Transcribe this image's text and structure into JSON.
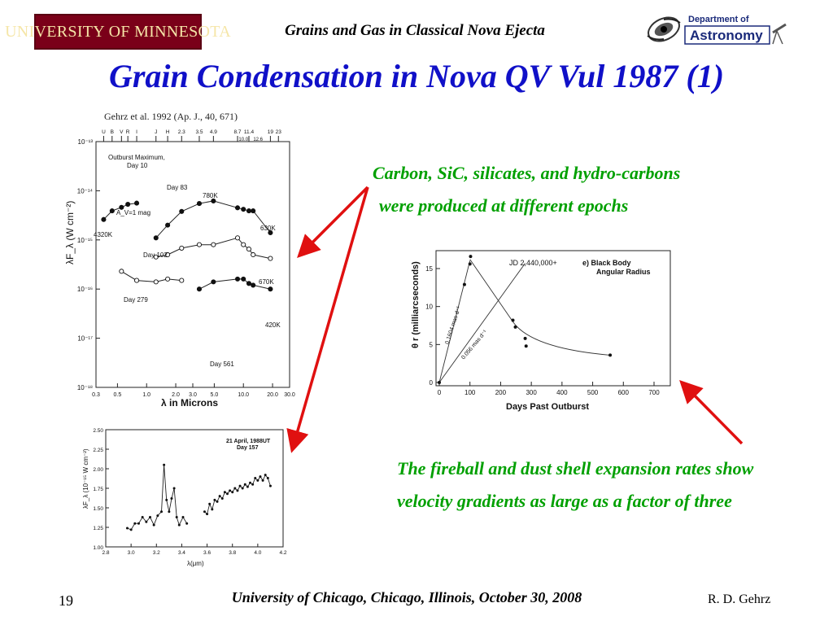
{
  "header": {
    "logo_text": "UNIVERSITY OF MINNESOTA",
    "title": "Grains and Gas in Classical Nova Ejecta",
    "dept_line1": "Department of",
    "dept_line2": "Astronomy"
  },
  "slide": {
    "title": "Grain Condensation in Nova QV Vul 1987 (1)",
    "caption_1_line1": "Carbon, SiC, silicates, and hydro-carbons",
    "caption_1_line2": "were produced at different epochs",
    "caption_2": "The fireball and dust  shell  expansion rates  show velocity  gradients as large as a  factor of three"
  },
  "footer": {
    "page": "19",
    "venue": "University of Chicago, Chicago, Illinois, October 30, 2008",
    "author": "R. D. Gehrz"
  },
  "colors": {
    "title_blue": "#1010c8",
    "caption_green": "#00a000",
    "arrow_red": "#e01010",
    "umn_maroon": "#7a0019",
    "umn_gold": "#f5e6a8"
  },
  "chart_data": [
    {
      "type": "scatter",
      "title": "Gehrz et al. 1992 (Ap. J., 40, 671)",
      "xlabel": "λ in Microns",
      "ylabel": "λF_λ (W cm⁻²)",
      "xscale": "log",
      "yscale": "log",
      "xlim": [
        0.3,
        30
      ],
      "ylim": [
        1e-18,
        1e-13
      ],
      "x_ticks": [
        "0.3",
        "0.5",
        "1.0",
        "2.0",
        "3.0",
        "5.0",
        "10.0",
        "20.0",
        "30.0"
      ],
      "y_ticks": [
        "10⁻¹³",
        "10⁻¹⁴",
        "10⁻¹⁵",
        "10⁻¹⁶",
        "10⁻¹⁷",
        "10⁻¹⁸"
      ],
      "band_labels": [
        "U",
        "B",
        "V",
        "R",
        "I",
        "J",
        "H",
        "2.3",
        "3.5",
        "4.9",
        "8.7",
        "11.4",
        "19",
        "23",
        "10.0",
        "12.6"
      ],
      "annotations": [
        "Outburst Maximum,",
        "Day 10",
        "Day 83",
        "780K",
        "630K",
        "A_V=1 mag",
        "4320K",
        "Day 102",
        "670K",
        "Day 279",
        "420K",
        "Day 561"
      ],
      "series": [
        {
          "name": "Day 10",
          "x": [
            0.36,
            0.44,
            0.55,
            0.64,
            0.79
          ],
          "y": [
            2.6e-15,
            3.9e-15,
            4.6e-15,
            5.3e-15,
            5.6e-15
          ]
        },
        {
          "name": "Day 83",
          "x": [
            1.25,
            1.65,
            2.3,
            3.5,
            4.9,
            8.7,
            10,
            11.4,
            12.6,
            19
          ],
          "y": [
            1.1e-15,
            2e-15,
            3.8e-15,
            5.5e-15,
            6.2e-15,
            4.5e-15,
            4.2e-15,
            3.9e-15,
            3.9e-15,
            1.4e-15
          ]
        },
        {
          "name": "Day 102",
          "x": [
            1.25,
            1.65,
            2.3,
            3.5,
            4.9,
            8.7,
            10,
            11.4,
            12.6,
            19
          ],
          "y": [
            4.5e-16,
            5e-16,
            6.8e-16,
            8e-16,
            8e-16,
            1.1e-15,
            8e-16,
            6.5e-16,
            5e-16,
            4.2e-16
          ]
        },
        {
          "name": "Day 279",
          "x": [
            0.55,
            0.79,
            1.25,
            1.65,
            2.3
          ],
          "y": [
            2.3e-16,
            1.5e-16,
            1.4e-16,
            1.6e-16,
            1.5e-16
          ]
        },
        {
          "name": "Day 561",
          "x": [
            3.5,
            4.9,
            8.7,
            10,
            11.4,
            12.6,
            19
          ],
          "y": [
            1e-16,
            1.4e-16,
            1.6e-16,
            1.6e-16,
            1.3e-16,
            1.2e-16,
            1e-16
          ]
        }
      ]
    },
    {
      "type": "line",
      "title": "",
      "annotation": "21 April, 1988UT Day 157",
      "xlabel": "λ(μm)",
      "ylabel": "λF_λ (10⁻¹⁵ W cm⁻²)",
      "xlim": [
        2.8,
        4.2
      ],
      "ylim": [
        1.0,
        2.5
      ],
      "x_ticks": [
        "2.8",
        "3.0",
        "3.2",
        "3.4",
        "3.6",
        "3.8",
        "4.0",
        "4.2"
      ],
      "y_ticks": [
        "2.50",
        "2.25",
        "2.00",
        "1.75",
        "1.50",
        "1.25",
        "1.00"
      ],
      "series": [
        {
          "name": "",
          "x": [
            2.97,
            3.0,
            3.03,
            3.06,
            3.09,
            3.12,
            3.15,
            3.18,
            3.21,
            3.24,
            3.26,
            3.28,
            3.3,
            3.32,
            3.34,
            3.36,
            3.38,
            3.41,
            3.44
          ],
          "y": [
            1.24,
            1.22,
            1.3,
            1.3,
            1.38,
            1.32,
            1.38,
            1.28,
            1.4,
            1.45,
            2.05,
            1.6,
            1.45,
            1.62,
            1.75,
            1.38,
            1.28,
            1.38,
            1.3
          ]
        },
        {
          "name": "",
          "x": [
            3.58,
            3.6,
            3.62,
            3.64,
            3.66,
            3.68,
            3.7,
            3.72,
            3.74,
            3.76,
            3.78,
            3.8,
            3.82,
            3.84,
            3.86,
            3.88,
            3.9,
            3.92,
            3.94,
            3.96,
            3.98,
            4.0,
            4.02,
            4.04,
            4.06,
            4.08,
            4.1
          ],
          "y": [
            1.45,
            1.42,
            1.55,
            1.48,
            1.6,
            1.58,
            1.65,
            1.62,
            1.7,
            1.68,
            1.72,
            1.7,
            1.75,
            1.72,
            1.78,
            1.75,
            1.8,
            1.77,
            1.82,
            1.8,
            1.88,
            1.85,
            1.9,
            1.85,
            1.92,
            1.88,
            1.78
          ]
        }
      ]
    },
    {
      "type": "scatter",
      "title": "",
      "annotation_1": "e)  Black Body",
      "annotation_2": "Angular Radius",
      "epoch_label": "JD 2,440,000+",
      "xlabel": "Days Past Outburst",
      "ylabel": "θ r (milliarcseconds)",
      "xlim": [
        0,
        700
      ],
      "ylim": [
        0,
        15
      ],
      "x_ticks": [
        "0",
        "100",
        "200",
        "300",
        "400",
        "500",
        "600",
        "700"
      ],
      "y_ticks": [
        "0",
        "5",
        "10",
        "15"
      ],
      "fit_labels": [
        "0.1604 mas d⁻¹",
        "0.056 mas d⁻¹"
      ],
      "series": [
        {
          "name": "",
          "x": [
            0,
            82,
            100,
            102,
            240,
            248,
            280,
            283,
            557
          ],
          "y": [
            0,
            12.9,
            15.6,
            16.6,
            8.2,
            7.3,
            5.8,
            4.8,
            3.6
          ]
        }
      ]
    }
  ]
}
